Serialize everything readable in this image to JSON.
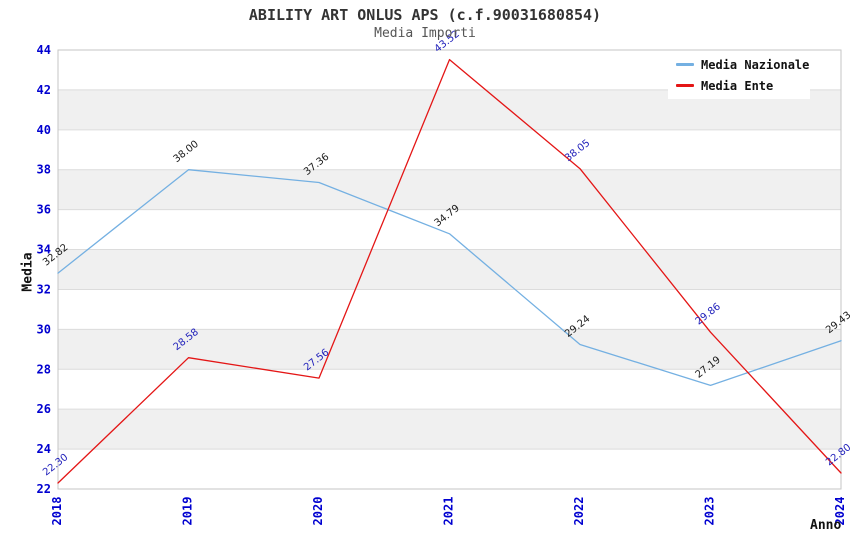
{
  "title": "ABILITY ART ONLUS APS (c.f.90031680854)",
  "subtitle": "Media Importi",
  "chart_data": {
    "type": "line",
    "x": [
      "2018",
      "2019",
      "2020",
      "2021",
      "2022",
      "2023",
      "2024"
    ],
    "series": [
      {
        "name": "Media Nazionale",
        "color": "#74b0e2",
        "label_color": "#1a1a1a",
        "values": [
          32.82,
          38.0,
          37.36,
          34.79,
          29.24,
          27.19,
          29.43
        ]
      },
      {
        "name": "Media Ente",
        "color": "#e41616",
        "label_color": "#2222bb",
        "values": [
          22.3,
          28.58,
          27.56,
          43.52,
          38.05,
          29.86,
          22.8
        ]
      }
    ],
    "xlabel": "Anno",
    "ylabel": "Media",
    "ylim": [
      22,
      44
    ],
    "ytick_step": 2,
    "y_ticks": [
      22,
      24,
      26,
      28,
      30,
      32,
      34,
      36,
      38,
      40,
      42,
      44
    ],
    "grid": "horizontal",
    "alternating_bands": true,
    "legend_position": "top-right",
    "value_label_decimals": 2
  },
  "colors": {
    "tick_label": "#0000d0",
    "gridline": "#dcdcdc",
    "band": "#f0f0f0",
    "plot_border": "#c6c6c6",
    "title_text": "#333333",
    "subtitle_text": "#555555",
    "axis_label_text": "#111111",
    "legend_bg": "#ffffff"
  }
}
